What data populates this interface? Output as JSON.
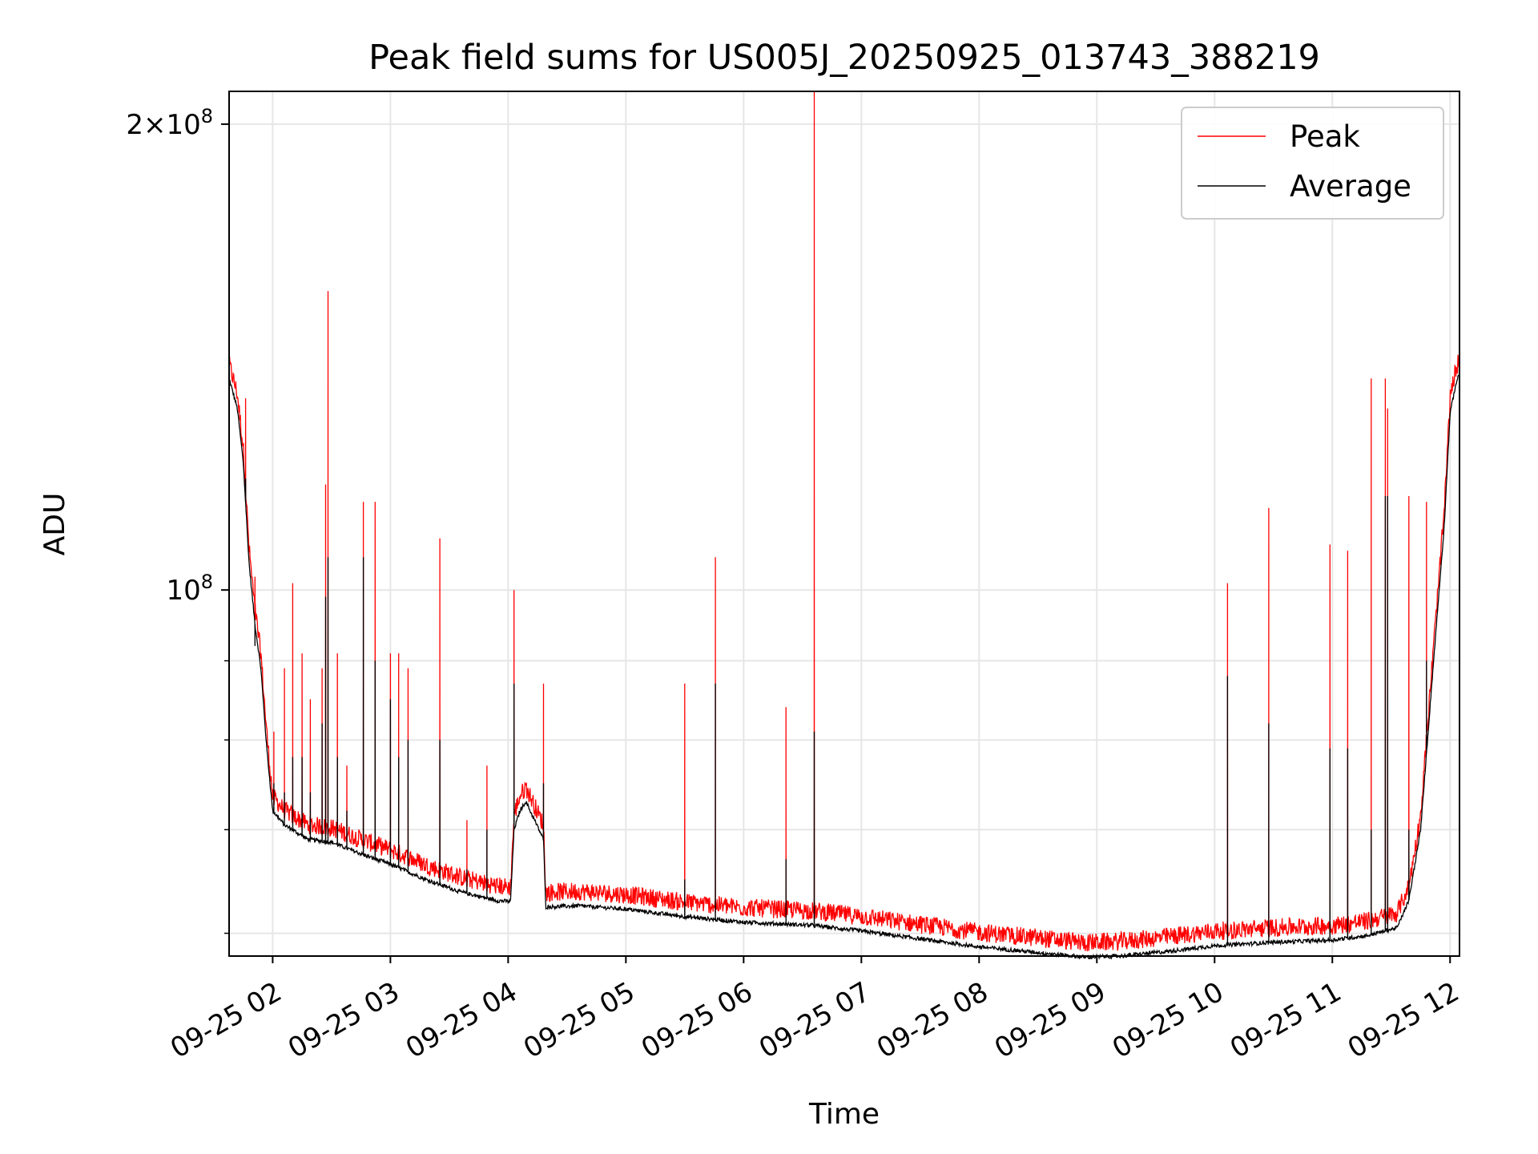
{
  "chart_data": {
    "type": "line",
    "title": "Peak field sums for US005J_20250925_013743_388219",
    "xlabel": "Time",
    "ylabel": "ADU",
    "yscale": "log",
    "ylim": [
      58000000,
      210000000
    ],
    "xlim_hours": [
      1.63,
      12.08
    ],
    "x_ticks": [
      {
        "hour": 2,
        "label": "09-25 02"
      },
      {
        "hour": 3,
        "label": "09-25 03"
      },
      {
        "hour": 4,
        "label": "09-25 04"
      },
      {
        "hour": 5,
        "label": "09-25 05"
      },
      {
        "hour": 6,
        "label": "09-25 06"
      },
      {
        "hour": 7,
        "label": "09-25 07"
      },
      {
        "hour": 8,
        "label": "09-25 08"
      },
      {
        "hour": 9,
        "label": "09-25 09"
      },
      {
        "hour": 10,
        "label": "09-25 10"
      },
      {
        "hour": 11,
        "label": "09-25 11"
      },
      {
        "hour": 12,
        "label": "09-25 12"
      }
    ],
    "y_ticks": [
      {
        "value": 100000000,
        "base": "10",
        "exp": "8"
      },
      {
        "value": 200000000,
        "base": "2×10",
        "exp": "8"
      }
    ],
    "y_minor_ticks": [
      60000000,
      70000000,
      80000000,
      90000000
    ],
    "grid": true,
    "legend_position": "top-right",
    "series": [
      {
        "name": "Peak",
        "color": "#ff0000"
      },
      {
        "name": "Average",
        "color": "#000000"
      }
    ],
    "baseline_average": [
      [
        1.63,
        137000000
      ],
      [
        1.7,
        131000000
      ],
      [
        1.75,
        121000000
      ],
      [
        1.8,
        104000000
      ],
      [
        1.85,
        95000000
      ],
      [
        1.9,
        89000000
      ],
      [
        1.95,
        79000000
      ],
      [
        2.0,
        72000000
      ],
      [
        2.1,
        70500000
      ],
      [
        2.3,
        69000000
      ],
      [
        2.5,
        68700000
      ],
      [
        2.8,
        67300000
      ],
      [
        3.0,
        66500000
      ],
      [
        3.3,
        65000000
      ],
      [
        3.6,
        63800000
      ],
      [
        3.9,
        63000000
      ],
      [
        4.02,
        62900000
      ],
      [
        4.05,
        70000000
      ],
      [
        4.1,
        72000000
      ],
      [
        4.15,
        73000000
      ],
      [
        4.3,
        69000000
      ],
      [
        4.32,
        62400000
      ],
      [
        4.6,
        62500000
      ],
      [
        5.0,
        62200000
      ],
      [
        5.5,
        61500000
      ],
      [
        6.0,
        61000000
      ],
      [
        6.6,
        60700000
      ],
      [
        7.0,
        60200000
      ],
      [
        7.5,
        59500000
      ],
      [
        8.0,
        58800000
      ],
      [
        8.5,
        58300000
      ],
      [
        8.9,
        57900000
      ],
      [
        9.2,
        58000000
      ],
      [
        9.6,
        58400000
      ],
      [
        10.0,
        58900000
      ],
      [
        10.5,
        59200000
      ],
      [
        11.0,
        59400000
      ],
      [
        11.3,
        59800000
      ],
      [
        11.55,
        60500000
      ],
      [
        11.65,
        63000000
      ],
      [
        11.75,
        70000000
      ],
      [
        11.85,
        88000000
      ],
      [
        11.95,
        110000000
      ],
      [
        12.0,
        130000000
      ],
      [
        12.05,
        136000000
      ],
      [
        12.08,
        138000000
      ]
    ],
    "spikes": [
      {
        "t": 1.77,
        "peak": 133000000,
        "avg": 118000000
      },
      {
        "t": 1.85,
        "peak": 102000000,
        "avg": 92000000
      },
      {
        "t": 2.01,
        "peak": 81000000,
        "avg": 75000000
      },
      {
        "t": 2.1,
        "peak": 89000000,
        "avg": 74000000
      },
      {
        "t": 2.17,
        "peak": 101000000,
        "avg": 78000000
      },
      {
        "t": 2.25,
        "peak": 91000000,
        "avg": 78000000
      },
      {
        "t": 2.32,
        "peak": 85000000,
        "avg": 74000000
      },
      {
        "t": 2.42,
        "peak": 89000000,
        "avg": 82000000
      },
      {
        "t": 2.45,
        "peak": 117000000,
        "avg": 99000000
      },
      {
        "t": 2.47,
        "peak": 156000000,
        "avg": 105000000
      },
      {
        "t": 2.55,
        "peak": 91000000,
        "avg": 78000000
      },
      {
        "t": 2.63,
        "peak": 77000000,
        "avg": 72000000
      },
      {
        "t": 2.77,
        "peak": 114000000,
        "avg": 105000000
      },
      {
        "t": 2.87,
        "peak": 114000000,
        "avg": 90000000
      },
      {
        "t": 3.0,
        "peak": 91000000,
        "avg": 85000000
      },
      {
        "t": 3.07,
        "peak": 91000000,
        "avg": 78000000
      },
      {
        "t": 3.15,
        "peak": 89000000,
        "avg": 80000000
      },
      {
        "t": 3.42,
        "peak": 108000000,
        "avg": 80000000
      },
      {
        "t": 3.65,
        "peak": 71000000,
        "avg": 66000000
      },
      {
        "t": 3.82,
        "peak": 77000000,
        "avg": 70000000
      },
      {
        "t": 4.05,
        "peak": 100000000,
        "avg": 87000000
      },
      {
        "t": 4.3,
        "peak": 87000000,
        "avg": 75000000
      },
      {
        "t": 5.5,
        "peak": 87000000,
        "avg": 65000000
      },
      {
        "t": 5.76,
        "peak": 105000000,
        "avg": 87000000
      },
      {
        "t": 6.36,
        "peak": 84000000,
        "avg": 67000000
      },
      {
        "t": 6.6,
        "peak": 210000000,
        "avg": 81000000
      },
      {
        "t": 10.11,
        "peak": 101000000,
        "avg": 88000000
      },
      {
        "t": 10.46,
        "peak": 113000000,
        "avg": 82000000
      },
      {
        "t": 10.98,
        "peak": 107000000,
        "avg": 79000000
      },
      {
        "t": 11.13,
        "peak": 106000000,
        "avg": 79000000
      },
      {
        "t": 11.33,
        "peak": 137000000,
        "avg": 70000000
      },
      {
        "t": 11.45,
        "peak": 137000000,
        "avg": 115000000
      },
      {
        "t": 11.47,
        "peak": 131000000,
        "avg": 115000000
      },
      {
        "t": 11.65,
        "peak": 115000000,
        "avg": 70000000
      },
      {
        "t": 11.8,
        "peak": 114000000,
        "avg": 90000000
      }
    ]
  }
}
